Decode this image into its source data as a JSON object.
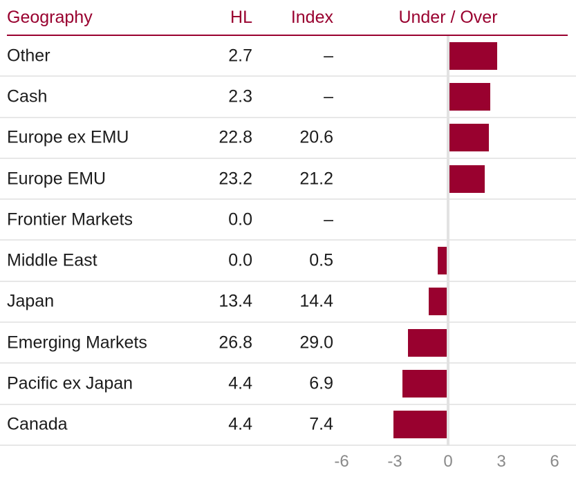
{
  "colors": {
    "accent": "#99012f",
    "bar": "#99012f",
    "grid_line": "#e7e7e7",
    "zero_line": "#e2e2e2",
    "axis_text": "#8a8a8a",
    "row_text": "#1c1c1c"
  },
  "header": {
    "geography": "Geography",
    "hl": "HL",
    "index": "Index",
    "under_over": "Under / Over"
  },
  "table": {
    "rows": [
      {
        "geography": "Other",
        "hl": "2.7",
        "index": "–",
        "under_over": 2.7
      },
      {
        "geography": "Cash",
        "hl": "2.3",
        "index": "–",
        "under_over": 2.3
      },
      {
        "geography": "Europe ex EMU",
        "hl": "22.8",
        "index": "20.6",
        "under_over": 2.2
      },
      {
        "geography": "Europe EMU",
        "hl": "23.2",
        "index": "21.2",
        "under_over": 2.0
      },
      {
        "geography": "Frontier Markets",
        "hl": "0.0",
        "index": "–",
        "under_over": 0.0
      },
      {
        "geography": "Middle East",
        "hl": "0.0",
        "index": "0.5",
        "under_over": -0.5
      },
      {
        "geography": "Japan",
        "hl": "13.4",
        "index": "14.4",
        "under_over": -1.0
      },
      {
        "geography": "Emerging Markets",
        "hl": "26.8",
        "index": "29.0",
        "under_over": -2.2
      },
      {
        "geography": "Pacific ex Japan",
        "hl": "4.4",
        "index": "6.9",
        "under_over": -2.5
      },
      {
        "geography": "Canada",
        "hl": "4.4",
        "index": "7.4",
        "under_over": -3.0
      }
    ]
  },
  "axis": {
    "ticks": [
      "-6",
      "-3",
      "0",
      "3",
      "6"
    ]
  },
  "chart_data": {
    "type": "bar",
    "orientation": "horizontal",
    "title": "Under / Over",
    "categories": [
      "Other",
      "Cash",
      "Europe ex EMU",
      "Europe EMU",
      "Frontier Markets",
      "Middle East",
      "Japan",
      "Emerging Markets",
      "Pacific ex Japan",
      "Canada"
    ],
    "series": [
      {
        "name": "HL",
        "values": [
          2.7,
          2.3,
          22.8,
          23.2,
          0.0,
          0.0,
          13.4,
          26.8,
          4.4,
          4.4
        ]
      },
      {
        "name": "Index",
        "values": [
          null,
          null,
          20.6,
          21.2,
          null,
          0.5,
          14.4,
          29.0,
          6.9,
          7.4
        ]
      },
      {
        "name": "Under / Over",
        "values": [
          2.7,
          2.3,
          2.2,
          2.0,
          0.0,
          -0.5,
          -1.0,
          -2.2,
          -2.5,
          -3.0
        ]
      }
    ],
    "xlabel": "",
    "ylabel": "",
    "xlim": [
      -6,
      6
    ],
    "x_ticks": [
      -6,
      -3,
      0,
      3,
      6
    ],
    "grid": false,
    "legend_position": "none"
  }
}
